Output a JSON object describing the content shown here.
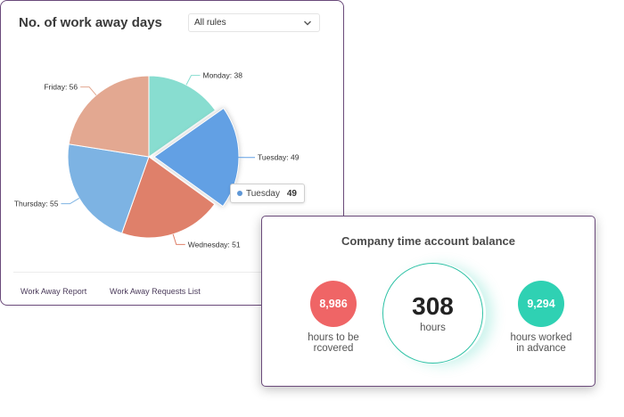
{
  "work_away_card": {
    "title": "No. of work away days",
    "rules_select": {
      "selected": "All rules"
    },
    "tooltip": {
      "name": "Tuesday",
      "value": "49",
      "color": "#5e97d6"
    },
    "links": {
      "report": "Work Away Report",
      "requests": "Work Away Requests List"
    }
  },
  "chart_data": {
    "type": "pie",
    "title": "No. of work away days",
    "slices": [
      {
        "label": "Monday",
        "value": 38,
        "display": "Monday: 38",
        "color": "#88ddd0"
      },
      {
        "label": "Tuesday",
        "value": 49,
        "display": "Tuesday: 49",
        "color": "#62a0e4"
      },
      {
        "label": "Wednesday",
        "value": 51,
        "display": "Wednesday: 51",
        "color": "#df806a"
      },
      {
        "label": "Thursday",
        "value": 55,
        "display": "Thursday: 55",
        "color": "#7db3e3"
      },
      {
        "label": "Friday",
        "value": 56,
        "display": "Friday: 56",
        "color": "#e3a891"
      }
    ],
    "start_angle_deg": 0,
    "direction": "clockwise",
    "highlighted": "Tuesday",
    "legend": "none"
  },
  "balance_card": {
    "title": "Company time account balance",
    "to_recover": {
      "value": "8,986",
      "label_line1": "hours to be",
      "label_line2": "rcovered",
      "color": "#ef6566"
    },
    "total": {
      "value": "308",
      "unit": "hours",
      "color": "#2fc2a6"
    },
    "in_advance": {
      "value": "9,294",
      "label_line1": "hours worked",
      "label_line2": "in advance",
      "color": "#2fd1b3"
    }
  }
}
